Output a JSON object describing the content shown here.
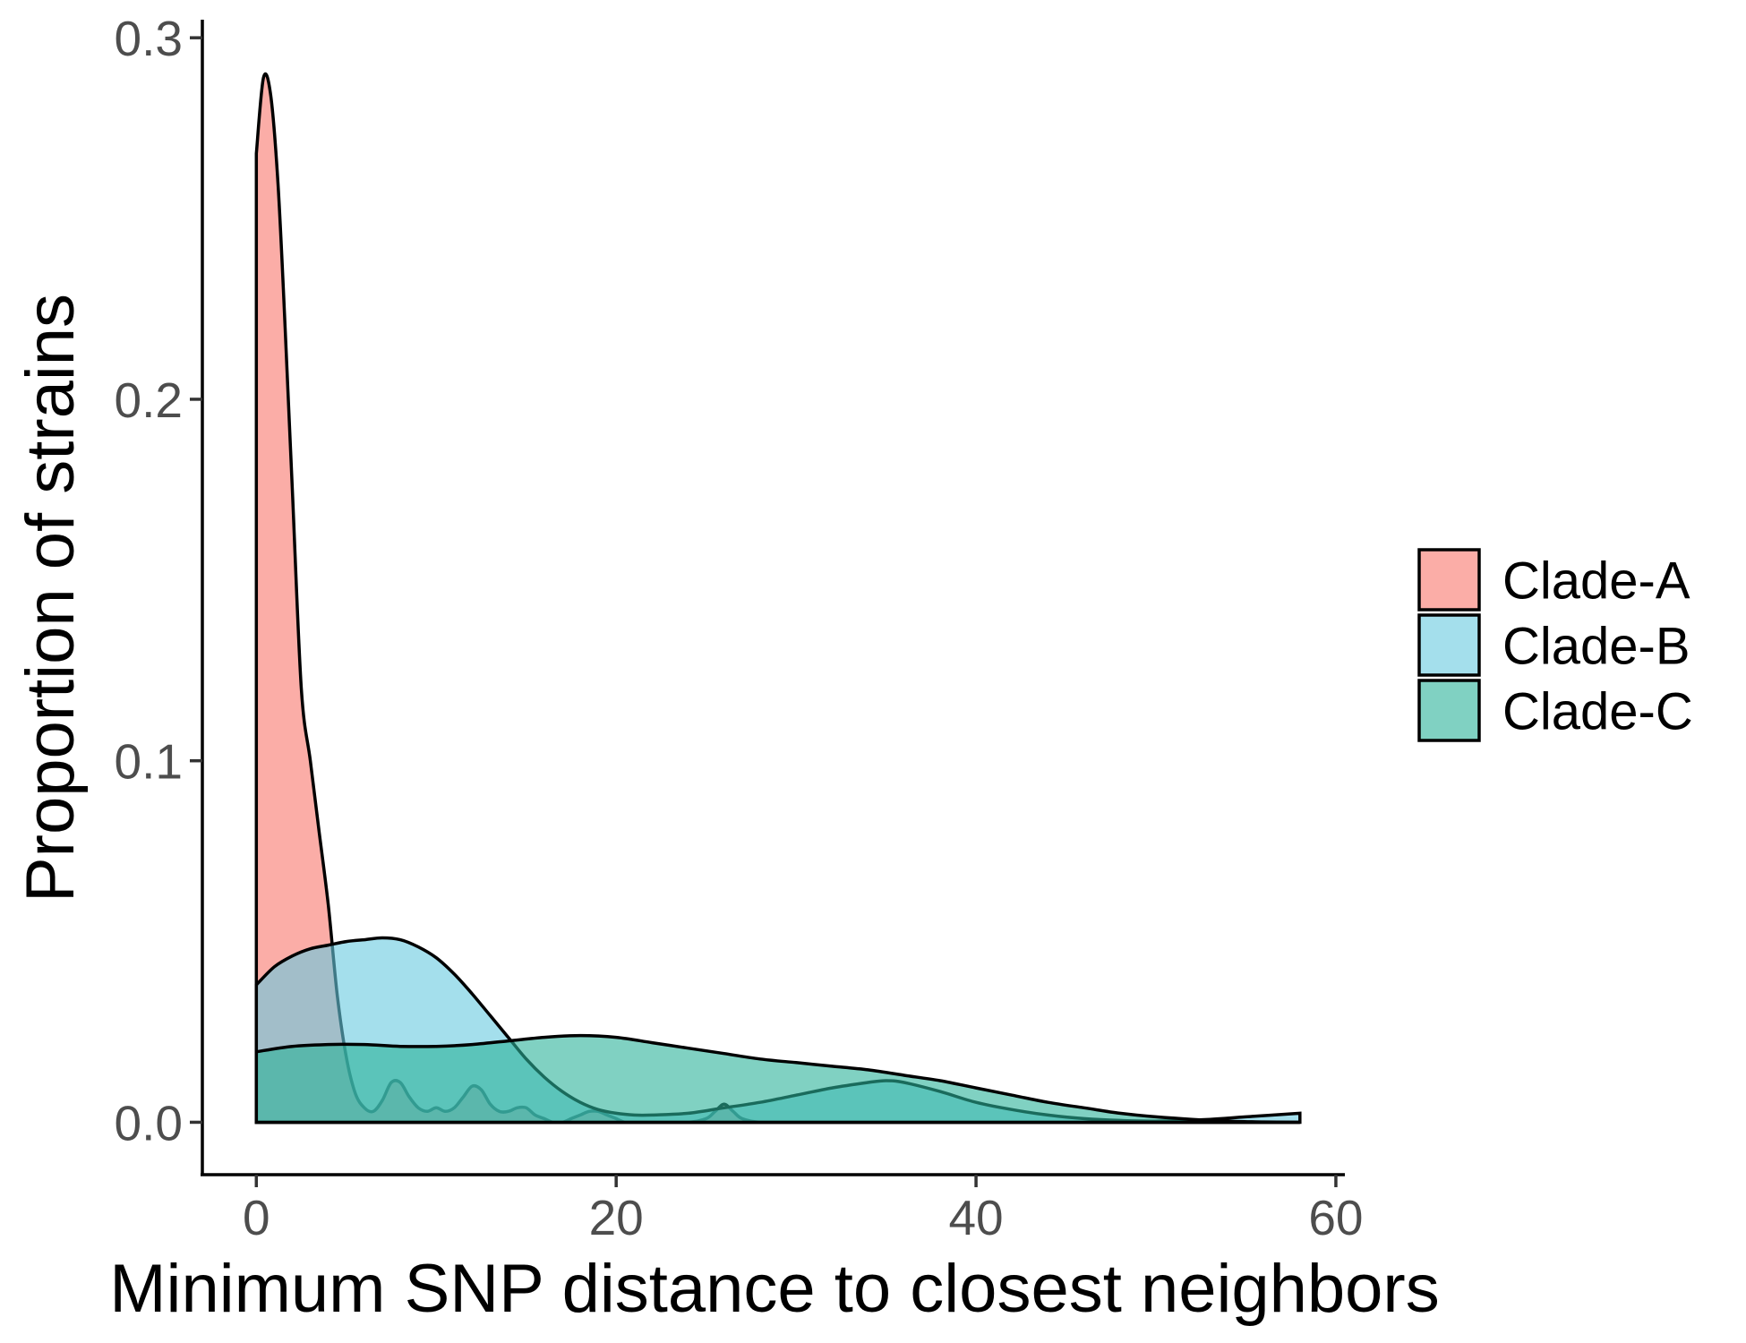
{
  "chart_data": {
    "type": "area",
    "title": "",
    "xlabel": "Minimum SNP distance to closest neighbors",
    "ylabel": "Proportion of strains",
    "xlim": [
      -3,
      60.5
    ],
    "ylim": [
      -0.0145,
      0.305
    ],
    "x_ticks": [
      0,
      20,
      40,
      60
    ],
    "x_tick_labels": [
      "0",
      "20",
      "40",
      "60"
    ],
    "y_ticks": [
      0.0,
      0.1,
      0.2,
      0.3
    ],
    "y_tick_labels": [
      "0.0",
      "0.1",
      "0.2",
      "0.3"
    ],
    "grid": false,
    "legend_position": "right",
    "series": [
      {
        "name": "Clade-A",
        "color": "#F8766D",
        "x": [
          0,
          0.4,
          0.8,
          1.2,
          1.6,
          2.0,
          2.5,
          3.0,
          3.5,
          4.0,
          4.5,
          5.0,
          5.5,
          6.0,
          6.5,
          7.0,
          7.5,
          8.0,
          8.5,
          9.0,
          9.5,
          10.0,
          10.5,
          11.0,
          11.5,
          12.0,
          12.5,
          13.0,
          13.5,
          14.0,
          14.5,
          15.0,
          15.5,
          16.0,
          16.5,
          17.0,
          17.5,
          18.0,
          18.5,
          19.0,
          19.5,
          20.0,
          20.5,
          21,
          22,
          24,
          25,
          25.5,
          26,
          26.5,
          27,
          28,
          30,
          35,
          40,
          45,
          50,
          55,
          58
        ],
        "y": [
          0.268,
          0.289,
          0.284,
          0.26,
          0.22,
          0.175,
          0.12,
          0.1,
          0.08,
          0.06,
          0.035,
          0.018,
          0.008,
          0.004,
          0.003,
          0.006,
          0.011,
          0.011,
          0.007,
          0.004,
          0.003,
          0.004,
          0.003,
          0.004,
          0.007,
          0.01,
          0.009,
          0.005,
          0.003,
          0.003,
          0.004,
          0.004,
          0.002,
          0.001,
          0.0,
          0.0,
          0.001,
          0.002,
          0.003,
          0.003,
          0.002,
          0.001,
          0.0,
          0.0,
          0.0,
          0.0,
          0.001,
          0.003,
          0.005,
          0.003,
          0.001,
          0.0,
          0.0,
          0.0,
          0.0,
          0.0,
          0.0,
          0.0,
          0.0
        ]
      },
      {
        "name": "Clade-B",
        "color": "#68C9E0",
        "x": [
          0,
          1,
          2,
          3,
          4,
          5,
          6,
          7,
          8,
          9,
          10,
          11,
          12,
          13,
          14,
          15,
          16,
          17,
          18,
          19,
          20,
          21,
          22,
          24,
          26,
          28,
          30,
          32,
          34,
          35,
          36,
          38,
          40,
          42,
          44,
          46,
          48,
          50,
          53,
          55,
          58
        ],
        "y": [
          0.038,
          0.043,
          0.046,
          0.048,
          0.049,
          0.05,
          0.0505,
          0.051,
          0.0505,
          0.0485,
          0.0455,
          0.041,
          0.0355,
          0.0295,
          0.0235,
          0.0175,
          0.0125,
          0.0085,
          0.0055,
          0.0035,
          0.0025,
          0.002,
          0.002,
          0.0025,
          0.004,
          0.0055,
          0.0075,
          0.0095,
          0.011,
          0.0115,
          0.011,
          0.0085,
          0.0055,
          0.0035,
          0.002,
          0.001,
          0.0005,
          0.0003,
          0.0008,
          0.0015,
          0.0025
        ]
      },
      {
        "name": "Clade-C",
        "color": "#2BB39A",
        "x": [
          0,
          2,
          4,
          6,
          8,
          10,
          12,
          14,
          16,
          18,
          20,
          22,
          24,
          26,
          28,
          30,
          32,
          34,
          36,
          38,
          40,
          42,
          44,
          46,
          48,
          50,
          52,
          54,
          56,
          58
        ],
        "y": [
          0.0195,
          0.021,
          0.0215,
          0.0215,
          0.021,
          0.021,
          0.0215,
          0.0225,
          0.0235,
          0.024,
          0.0235,
          0.022,
          0.0205,
          0.019,
          0.0175,
          0.0165,
          0.0155,
          0.0145,
          0.013,
          0.0115,
          0.0095,
          0.0075,
          0.0055,
          0.004,
          0.0025,
          0.0015,
          0.0008,
          0.0003,
          0.0001,
          0.0
        ]
      }
    ]
  }
}
